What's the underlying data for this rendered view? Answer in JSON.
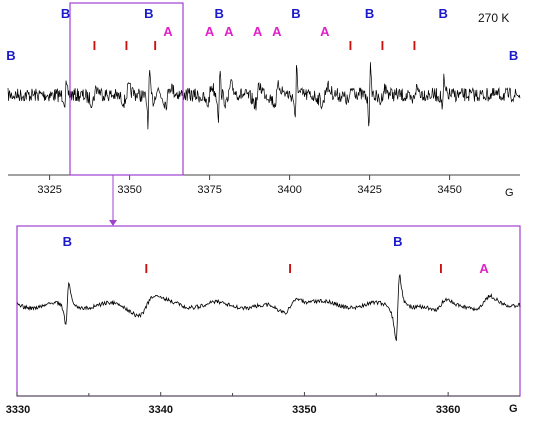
{
  "colors": {
    "B": "#1a1acc",
    "A": "#e020c8",
    "I": "#cc1010",
    "box": "#a040d0",
    "trace": "#000000",
    "axis": "#444444"
  },
  "temperature_label": "270 K",
  "chart_data": [
    {
      "type": "line",
      "name": "overview-spectrum",
      "xlabel": "G",
      "xlim": [
        3312,
        3472
      ],
      "x_ticks": [
        3325,
        3350,
        3375,
        3400,
        3425,
        3450
      ],
      "x_tick_labels": [
        "3325",
        "3350",
        "3375",
        "3400",
        "3425",
        "3450"
      ],
      "markers": [
        {
          "label": "B",
          "x": 3312
        },
        {
          "label": "B",
          "x": 3330
        },
        {
          "label": "I",
          "x": 3339
        },
        {
          "label": "I",
          "x": 3349
        },
        {
          "label": "B",
          "x": 3356
        },
        {
          "label": "I",
          "x": 3358
        },
        {
          "label": "A",
          "x": 3362
        },
        {
          "label": "A",
          "x": 3375
        },
        {
          "label": "B",
          "x": 3378
        },
        {
          "label": "A",
          "x": 3381
        },
        {
          "label": "A",
          "x": 3390
        },
        {
          "label": "A",
          "x": 3396
        },
        {
          "label": "B",
          "x": 3402
        },
        {
          "label": "A",
          "x": 3411
        },
        {
          "label": "I",
          "x": 3419
        },
        {
          "label": "B",
          "x": 3425
        },
        {
          "label": "I",
          "x": 3429
        },
        {
          "label": "I",
          "x": 3439
        },
        {
          "label": "B",
          "x": 3448
        },
        {
          "label": "B",
          "x": 3470
        }
      ],
      "zoom_region": [
        3330,
        3362
      ]
    },
    {
      "type": "line",
      "name": "zoomed-spectrum",
      "xlabel": "G",
      "xlim": [
        3330,
        3365
      ],
      "x_ticks": [
        3330,
        3340,
        3350,
        3360
      ],
      "x_tick_labels": [
        "3330",
        "3340",
        "3350",
        "3360"
      ],
      "markers": [
        {
          "label": "B",
          "x": 3333.5
        },
        {
          "label": "I",
          "x": 3339
        },
        {
          "label": "I",
          "x": 3349
        },
        {
          "label": "B",
          "x": 3356.5
        },
        {
          "label": "I",
          "x": 3359.5
        },
        {
          "label": "A",
          "x": 3362.5
        }
      ]
    }
  ]
}
